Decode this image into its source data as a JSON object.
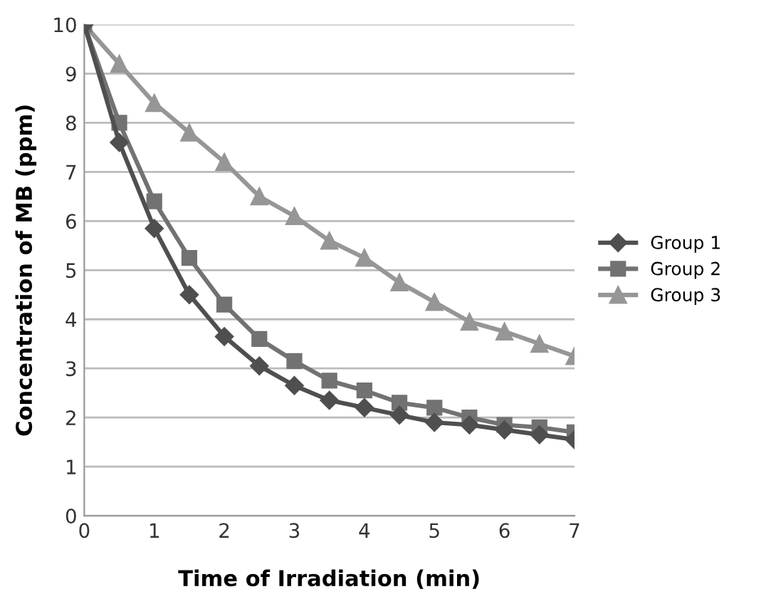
{
  "chart_data": {
    "type": "line",
    "xlabel": "Time of Irradiation (min)",
    "ylabel": "Concentration of MB (ppm)",
    "x": [
      0,
      0.5,
      1,
      1.5,
      2,
      2.5,
      3,
      3.5,
      4,
      4.5,
      5,
      5.5,
      6,
      6.5,
      7
    ],
    "series": [
      {
        "name": "Group 1",
        "color": "#4f4f4f",
        "marker": "diamond",
        "values": [
          10,
          7.6,
          5.85,
          4.5,
          3.65,
          3.05,
          2.65,
          2.35,
          2.2,
          2.05,
          1.9,
          1.85,
          1.75,
          1.65,
          1.55
        ]
      },
      {
        "name": "Group 2",
        "color": "#727272",
        "marker": "square",
        "values": [
          10,
          8.0,
          6.4,
          5.25,
          4.3,
          3.6,
          3.15,
          2.75,
          2.55,
          2.3,
          2.2,
          2.0,
          1.85,
          1.8,
          1.7
        ]
      },
      {
        "name": "Group 3",
        "color": "#969696",
        "marker": "triangle",
        "values": [
          10,
          9.2,
          8.4,
          7.8,
          7.2,
          6.5,
          6.1,
          5.6,
          5.25,
          4.75,
          4.35,
          3.95,
          3.75,
          3.5,
          3.25
        ]
      }
    ],
    "xlim": [
      0,
      7
    ],
    "xticks": [
      0,
      1,
      2,
      3,
      4,
      5,
      6,
      7
    ],
    "ylim": [
      0,
      10
    ],
    "yticks": [
      0,
      1,
      2,
      3,
      4,
      5,
      6,
      7,
      8,
      9,
      10
    ],
    "grid": "y",
    "legend": "right"
  }
}
